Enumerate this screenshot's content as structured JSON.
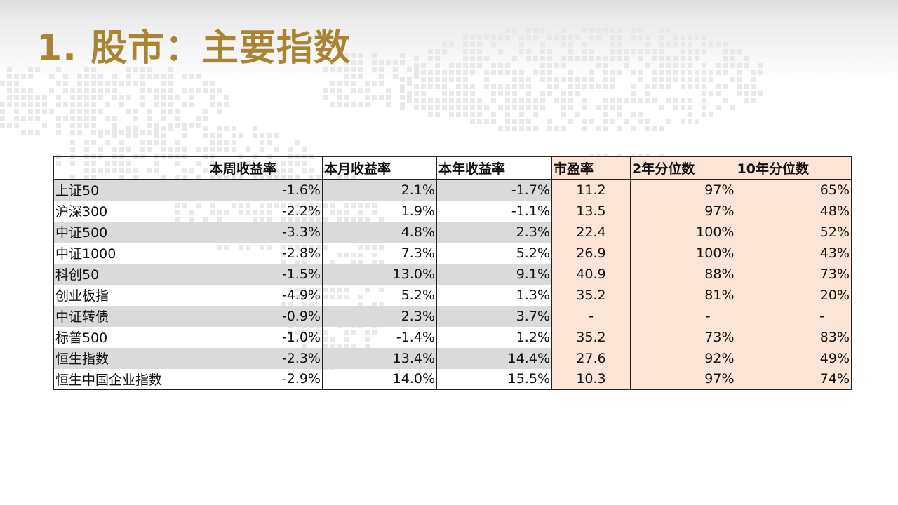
{
  "title": "1. 股市：主要指数",
  "table": {
    "headers": [
      "",
      "本周收益率",
      "本月收益率",
      "本年收益率",
      "市盈率",
      "2年分位数",
      "10年分位数"
    ],
    "rows": [
      {
        "name": "上证50",
        "week": "-1.6%",
        "month": "2.1%",
        "ytd": "-1.7%",
        "pe": "11.2",
        "p2y": "97%",
        "p10y": "65%"
      },
      {
        "name": "沪深300",
        "week": "-2.2%",
        "month": "1.9%",
        "ytd": "-1.1%",
        "pe": "13.5",
        "p2y": "97%",
        "p10y": "48%"
      },
      {
        "name": "中证500",
        "week": "-3.3%",
        "month": "4.8%",
        "ytd": "2.3%",
        "pe": "22.4",
        "p2y": "100%",
        "p10y": "52%"
      },
      {
        "name": "中证1000",
        "week": "-2.8%",
        "month": "7.3%",
        "ytd": "5.2%",
        "pe": "26.9",
        "p2y": "100%",
        "p10y": "43%"
      },
      {
        "name": "科创50",
        "week": "-1.5%",
        "month": "13.0%",
        "ytd": "9.1%",
        "pe": "40.9",
        "p2y": "88%",
        "p10y": "73%"
      },
      {
        "name": "创业板指",
        "week": "-4.9%",
        "month": "5.2%",
        "ytd": "1.3%",
        "pe": "35.2",
        "p2y": "81%",
        "p10y": "20%"
      },
      {
        "name": "中证转债",
        "week": "-0.9%",
        "month": "2.3%",
        "ytd": "3.7%",
        "pe": "-",
        "p2y": "-",
        "p10y": "-"
      },
      {
        "name": "标普500",
        "week": "-1.0%",
        "month": "-1.4%",
        "ytd": "1.2%",
        "pe": "35.2",
        "p2y": "73%",
        "p10y": "83%"
      },
      {
        "name": "恒生指数",
        "week": "-2.3%",
        "month": "13.4%",
        "ytd": "14.4%",
        "pe": "27.6",
        "p2y": "92%",
        "p10y": "49%"
      },
      {
        "name": "恒生中国企业指数",
        "week": "-2.9%",
        "month": "14.0%",
        "ytd": "15.5%",
        "pe": "10.3",
        "p2y": "97%",
        "p10y": "74%"
      }
    ]
  },
  "colors": {
    "title": "#a98533",
    "row_band": "#dadada",
    "valuation_fill": "#fce4d6"
  }
}
